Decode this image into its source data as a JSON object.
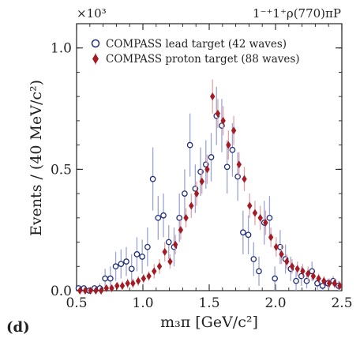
{
  "chart_data": {
    "type": "scatter",
    "title": "",
    "wave_label": "1⁻⁺1⁺ρ(770)πP",
    "scale_label": "×10³",
    "panel_label": "(d)",
    "xlabel": "m₃π [GeV/c²]",
    "ylabel": "Events / (40 MeV/c²)",
    "xlim": [
      0.5,
      2.5
    ],
    "ylim": [
      0.0,
      1.1
    ],
    "x_ticks": [
      0.5,
      1.0,
      1.5,
      2.0,
      2.5
    ],
    "x_tick_labels": [
      "0.5",
      "1.0",
      "1.5",
      "2.0",
      "2.5"
    ],
    "y_ticks": [
      0.0,
      0.5,
      1.0
    ],
    "y_tick_labels": [
      "0.0",
      "0.5",
      "1.0"
    ],
    "legend_position": "top-left",
    "series": [
      {
        "name": "COMPASS lead target (42 waves)",
        "marker": "open-circle",
        "color": "#1f2d7a",
        "errorbar_color": "#9aa4d6",
        "x": [
          0.52,
          0.56,
          0.6,
          0.64,
          0.68,
          0.72,
          0.76,
          0.8,
          0.84,
          0.88,
          0.92,
          0.96,
          1.0,
          1.04,
          1.08,
          1.12,
          1.16,
          1.2,
          1.24,
          1.28,
          1.32,
          1.36,
          1.4,
          1.44,
          1.48,
          1.52,
          1.56,
          1.6,
          1.64,
          1.68,
          1.72,
          1.76,
          1.8,
          1.84,
          1.88,
          1.92,
          1.96,
          2.0,
          2.04,
          2.08,
          2.12,
          2.16,
          2.2,
          2.24,
          2.28,
          2.32,
          2.36,
          2.4,
          2.44,
          2.48
        ],
        "y": [
          0.01,
          0.01,
          0.0,
          0.01,
          0.01,
          0.05,
          0.05,
          0.1,
          0.11,
          0.12,
          0.09,
          0.15,
          0.14,
          0.18,
          0.46,
          0.3,
          0.31,
          0.2,
          0.18,
          0.3,
          0.4,
          0.6,
          0.42,
          0.49,
          0.52,
          0.55,
          0.72,
          0.68,
          0.51,
          0.58,
          0.47,
          0.24,
          0.23,
          0.13,
          0.08,
          0.28,
          0.3,
          0.05,
          0.18,
          0.13,
          0.09,
          0.04,
          0.06,
          0.04,
          0.08,
          0.03,
          0.02,
          0.03,
          0.04,
          0.02
        ],
        "err": [
          0.01,
          0.01,
          0.01,
          0.01,
          0.02,
          0.04,
          0.05,
          0.06,
          0.06,
          0.06,
          0.06,
          0.07,
          0.07,
          0.08,
          0.13,
          0.09,
          0.09,
          0.07,
          0.08,
          0.1,
          0.1,
          0.13,
          0.1,
          0.1,
          0.1,
          0.1,
          0.12,
          0.11,
          0.11,
          0.11,
          0.1,
          0.09,
          0.08,
          0.07,
          0.06,
          0.09,
          0.09,
          0.05,
          0.07,
          0.06,
          0.05,
          0.04,
          0.04,
          0.03,
          0.04,
          0.03,
          0.02,
          0.02,
          0.02,
          0.02
        ]
      },
      {
        "name": "COMPASS proton target (88 waves)",
        "marker": "filled-diamond",
        "color": "#a41b24",
        "errorbar_color": "#e2a4a8",
        "x": [
          0.52,
          0.56,
          0.6,
          0.64,
          0.68,
          0.72,
          0.76,
          0.8,
          0.84,
          0.88,
          0.92,
          0.96,
          1.0,
          1.04,
          1.08,
          1.12,
          1.16,
          1.2,
          1.24,
          1.28,
          1.32,
          1.36,
          1.4,
          1.44,
          1.48,
          1.52,
          1.56,
          1.6,
          1.64,
          1.68,
          1.72,
          1.76,
          1.8,
          1.84,
          1.88,
          1.92,
          1.96,
          2.0,
          2.04,
          2.08,
          2.12,
          2.16,
          2.2,
          2.24,
          2.28,
          2.32,
          2.36,
          2.4,
          2.44,
          2.48
        ],
        "y": [
          0.0,
          0.0,
          0.0,
          0.0,
          0.0,
          0.01,
          0.01,
          0.02,
          0.02,
          0.03,
          0.03,
          0.04,
          0.05,
          0.06,
          0.08,
          0.1,
          0.16,
          0.12,
          0.19,
          0.25,
          0.3,
          0.35,
          0.4,
          0.45,
          0.5,
          0.8,
          0.73,
          0.7,
          0.6,
          0.66,
          0.52,
          0.46,
          0.35,
          0.32,
          0.3,
          0.28,
          0.22,
          0.18,
          0.15,
          0.12,
          0.1,
          0.09,
          0.08,
          0.07,
          0.06,
          0.05,
          0.04,
          0.03,
          0.03,
          0.02
        ],
        "err": [
          0.0,
          0.0,
          0.0,
          0.0,
          0.01,
          0.01,
          0.01,
          0.01,
          0.02,
          0.02,
          0.02,
          0.02,
          0.02,
          0.02,
          0.03,
          0.03,
          0.04,
          0.03,
          0.04,
          0.04,
          0.04,
          0.05,
          0.05,
          0.05,
          0.06,
          0.07,
          0.06,
          0.06,
          0.06,
          0.06,
          0.05,
          0.05,
          0.05,
          0.05,
          0.05,
          0.05,
          0.04,
          0.04,
          0.04,
          0.03,
          0.03,
          0.03,
          0.03,
          0.03,
          0.02,
          0.02,
          0.02,
          0.02,
          0.02,
          0.02
        ]
      }
    ]
  }
}
